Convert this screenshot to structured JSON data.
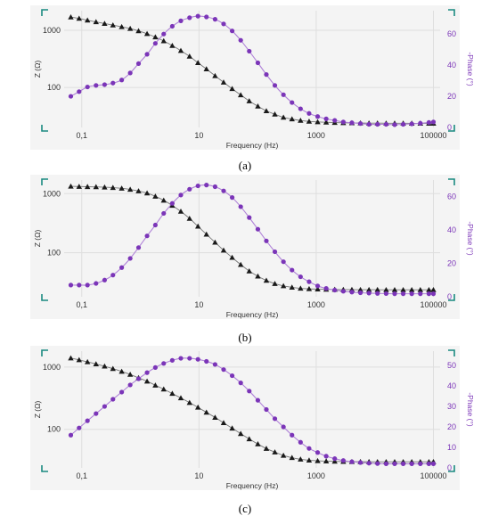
{
  "chart_data": [
    {
      "type": "scatter",
      "caption": "(a)",
      "xlabel": "Frequency (Hz)",
      "ylabel": "Z (Ω)",
      "y2label": "-Phase (°)",
      "xscale": "log",
      "yscale": "log",
      "xlim": [
        0.05,
        130000
      ],
      "ylim": [
        20,
        2200
      ],
      "y2lim": [
        0,
        75
      ],
      "x_ticks": [
        "0,1",
        "10",
        "1000",
        "100000"
      ],
      "y_ticks": [
        "100",
        "1000"
      ],
      "y2_ticks": [
        "0",
        "20",
        "40",
        "60"
      ],
      "grid": true,
      "colors": {
        "impedance": "#1a1a1a",
        "phase": "#7b35b8",
        "phase_fit": "#b083d8",
        "corner": "#1a8a80"
      },
      "x": [
        0.065,
        0.09,
        0.125,
        0.175,
        0.245,
        0.34,
        0.48,
        0.67,
        0.93,
        1.3,
        1.8,
        2.5,
        3.5,
        4.9,
        6.9,
        9.6,
        13.4,
        18.8,
        26.3,
        36.8,
        51.5,
        72,
        101,
        141,
        197,
        276,
        386,
        540,
        756,
        1058,
        1480,
        2070,
        2900,
        4060,
        5680,
        7950,
        11100,
        15600,
        21800,
        30500,
        42700,
        59800,
        83700,
        100000
      ],
      "series": [
        {
          "name": "|Z|",
          "axis": "left",
          "marker": "triangle",
          "values": [
            1700,
            1610,
            1500,
            1400,
            1310,
            1230,
            1150,
            1070,
            975,
            870,
            760,
            650,
            540,
            440,
            350,
            270,
            210,
            160,
            123,
            95,
            74,
            58,
            47,
            39,
            34,
            30,
            28,
            26.5,
            25.5,
            25,
            24.6,
            24.3,
            24.1,
            24,
            23.9,
            23.8,
            23.8,
            23.7,
            23.7,
            23.7,
            23.6,
            23.6,
            23.6,
            23.6
          ]
        },
        {
          "name": "-Phase",
          "axis": "right",
          "marker": "circle",
          "values": [
            20,
            23,
            26,
            27,
            27.5,
            28.5,
            30.5,
            35,
            41,
            47,
            54,
            60,
            65,
            68.5,
            70.5,
            71.5,
            71,
            69.5,
            66.5,
            62,
            56,
            49,
            41.5,
            34,
            27,
            21,
            16,
            12,
            9,
            7,
            5.5,
            4.5,
            3.5,
            3,
            2.5,
            2,
            2,
            2,
            1.8,
            2,
            2.3,
            2.7,
            3.2,
            3.5
          ]
        }
      ]
    },
    {
      "type": "scatter",
      "caption": "(b)",
      "xlabel": "Frequency (Hz)",
      "ylabel": "Z (Ω)",
      "y2label": "-Phase (°)",
      "xscale": "log",
      "yscale": "log",
      "xlim": [
        0.05,
        130000
      ],
      "ylim": [
        18,
        1700
      ],
      "y2lim": [
        0,
        70
      ],
      "x_ticks": [
        "0,1",
        "10",
        "1000",
        "100000"
      ],
      "y_ticks": [
        "100",
        "1000"
      ],
      "y2_ticks": [
        "0",
        "20",
        "40",
        "60"
      ],
      "grid": true,
      "colors": {
        "impedance": "#1a1a1a",
        "phase": "#7b35b8",
        "phase_fit": "#b083d8",
        "corner": "#1a8a80"
      },
      "x": [
        0.065,
        0.09,
        0.125,
        0.175,
        0.245,
        0.34,
        0.48,
        0.67,
        0.93,
        1.3,
        1.8,
        2.5,
        3.5,
        4.9,
        6.9,
        9.6,
        13.4,
        18.8,
        26.3,
        36.8,
        51.5,
        72,
        101,
        141,
        197,
        276,
        386,
        540,
        756,
        1058,
        1480,
        2070,
        2900,
        4060,
        5680,
        7950,
        11100,
        15600,
        21800,
        30500,
        42700,
        59800,
        83700,
        100000
      ],
      "series": [
        {
          "name": "|Z|",
          "axis": "left",
          "marker": "triangle",
          "values": [
            1330,
            1320,
            1310,
            1300,
            1285,
            1265,
            1230,
            1180,
            1110,
            1020,
            900,
            770,
            630,
            500,
            380,
            280,
            205,
            150,
            110,
            83,
            63,
            49,
            40,
            34,
            30,
            27.5,
            26,
            25,
            24.5,
            24.2,
            24,
            23.9,
            23.8,
            23.8,
            23.7,
            23.7,
            23.7,
            23.6,
            23.6,
            23.6,
            23.6,
            23.6,
            23.6,
            23.6
          ]
        },
        {
          "name": "-Phase",
          "axis": "right",
          "marker": "circle",
          "values": [
            7,
            7,
            7,
            8,
            10,
            13,
            17.5,
            23,
            29.5,
            36.5,
            43,
            50,
            56,
            61,
            64.5,
            66.5,
            67,
            66,
            63.5,
            59.5,
            54,
            47.5,
            40.5,
            33.5,
            27,
            21,
            16,
            12,
            9,
            6.5,
            5,
            4,
            3.3,
            2.8,
            2.4,
            2.2,
            2,
            1.9,
            1.8,
            1.8,
            1.8,
            1.8,
            1.8,
            1.8
          ]
        }
      ]
    },
    {
      "type": "scatter",
      "caption": "(c)",
      "xlabel": "Frequency (Hz)",
      "ylabel": "Z (Ω)",
      "y2label": "-Phase (°)",
      "xscale": "log",
      "yscale": "log",
      "xlim": [
        0.05,
        130000
      ],
      "ylim": [
        24,
        1800
      ],
      "y2lim": [
        0,
        57
      ],
      "x_ticks": [
        "0,1",
        "10",
        "1000",
        "100000"
      ],
      "y_ticks": [
        "100",
        "1000"
      ],
      "y2_ticks": [
        "0",
        "10",
        "20",
        "30",
        "40",
        "50"
      ],
      "grid": true,
      "colors": {
        "impedance": "#1a1a1a",
        "phase": "#7b35b8",
        "phase_fit": "#b083d8",
        "corner": "#1a8a80"
      },
      "x": [
        0.065,
        0.09,
        0.125,
        0.175,
        0.245,
        0.34,
        0.48,
        0.67,
        0.93,
        1.3,
        1.8,
        2.5,
        3.5,
        4.9,
        6.9,
        9.6,
        13.4,
        18.8,
        26.3,
        36.8,
        51.5,
        72,
        101,
        141,
        197,
        276,
        386,
        540,
        756,
        1058,
        1480,
        2070,
        2900,
        4060,
        5680,
        7950,
        11100,
        15600,
        21800,
        30500,
        42700,
        59800,
        83700,
        100000
      ],
      "series": [
        {
          "name": "|Z|",
          "axis": "left",
          "marker": "triangle",
          "values": [
            1390,
            1300,
            1210,
            1120,
            1030,
            940,
            850,
            760,
            670,
            590,
            510,
            440,
            375,
            318,
            268,
            225,
            187,
            155,
            127,
            104,
            85,
            70,
            58,
            49,
            43,
            38,
            35,
            33,
            31.8,
            31.2,
            30.8,
            30.5,
            30.3,
            30.2,
            30.1,
            30.1,
            30,
            30,
            30,
            30,
            30,
            30,
            30,
            30
          ]
        },
        {
          "name": "-Phase",
          "axis": "right",
          "marker": "circle",
          "values": [
            16,
            19.5,
            23,
            26.5,
            30,
            33.5,
            37,
            40.5,
            43.5,
            46.5,
            49,
            51,
            52.5,
            53.5,
            53.5,
            53,
            52,
            50.5,
            48,
            45,
            41.5,
            37.5,
            33,
            28.5,
            24,
            20,
            16,
            12.5,
            9.5,
            7.5,
            5.7,
            4.5,
            3.6,
            3,
            2.6,
            2.3,
            2.1,
            2,
            2,
            2,
            2,
            2,
            2,
            2
          ]
        }
      ]
    }
  ]
}
